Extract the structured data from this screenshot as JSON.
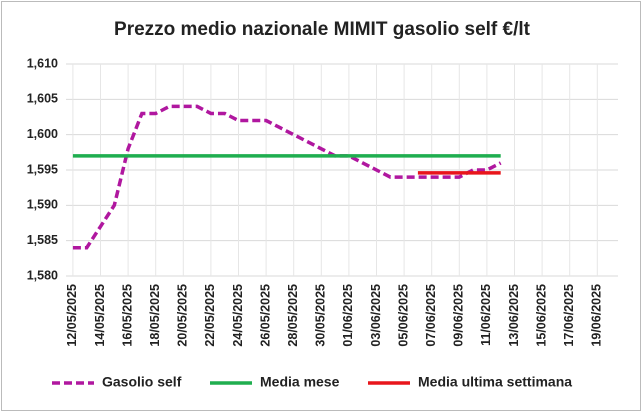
{
  "chart_data": {
    "type": "line",
    "title": "Prezzo medio nazionale MIMIT gasolio self €/lt",
    "categories": [
      "12/05/2025",
      null,
      "14/05/2025",
      null,
      "16/05/2025",
      null,
      "18/05/2025",
      null,
      "20/05/2025",
      null,
      "22/05/2025",
      null,
      "24/05/2025",
      null,
      "26/05/2025",
      null,
      "28/05/2025",
      null,
      "30/05/2025",
      null,
      "01/06/2025",
      null,
      "03/06/2025",
      null,
      "05/06/2025",
      null,
      "07/06/2025",
      null,
      "09/06/2025",
      null,
      "11/06/2025",
      null,
      "13/06/2025",
      null,
      "15/06/2025",
      null,
      "17/06/2025",
      null,
      "19/06/2025",
      null
    ],
    "series": [
      {
        "name": "Gasolio self",
        "color": "#b0179f",
        "dash": true,
        "values": [
          1.584,
          1.584,
          1.587,
          1.59,
          1.598,
          1.603,
          1.603,
          1.604,
          1.604,
          1.604,
          1.603,
          1.603,
          1.602,
          1.602,
          1.602,
          1.601,
          1.6,
          1.599,
          1.598,
          1.597,
          1.597,
          1.596,
          1.595,
          1.594,
          1.594,
          1.594,
          1.594,
          1.594,
          1.594,
          1.595,
          1.595,
          1.596,
          null,
          null,
          null,
          null,
          null,
          null,
          null,
          null
        ]
      },
      {
        "name": "Media mese",
        "color": "#1fae4f",
        "values": [
          1.597,
          1.597,
          1.597,
          1.597,
          1.597,
          1.597,
          1.597,
          1.597,
          1.597,
          1.597,
          1.597,
          1.597,
          1.597,
          1.597,
          1.597,
          1.597,
          1.597,
          1.597,
          1.597,
          1.597,
          1.597,
          1.597,
          1.597,
          1.597,
          1.597,
          1.597,
          1.597,
          1.597,
          1.597,
          1.597,
          1.597,
          1.597,
          null,
          null,
          null,
          null,
          null,
          null,
          null,
          null
        ]
      },
      {
        "name": "Media ultima settimana",
        "color": "#e8151b",
        "values": [
          null,
          null,
          null,
          null,
          null,
          null,
          null,
          null,
          null,
          null,
          null,
          null,
          null,
          null,
          null,
          null,
          null,
          null,
          null,
          null,
          null,
          null,
          null,
          null,
          null,
          1.5946,
          1.5946,
          1.5946,
          1.5946,
          1.5946,
          1.5946,
          1.5946,
          null,
          null,
          null,
          null,
          null,
          null,
          null,
          null
        ]
      }
    ],
    "ylim": [
      1.58,
      1.61
    ],
    "yticks": [
      {
        "value": 1.58,
        "label": "1,580"
      },
      {
        "value": 1.585,
        "label": "1,585"
      },
      {
        "value": 1.59,
        "label": "1,590"
      },
      {
        "value": 1.595,
        "label": "1,595"
      },
      {
        "value": 1.6,
        "label": "1,600"
      },
      {
        "value": 1.605,
        "label": "1,605"
      },
      {
        "value": 1.61,
        "label": "1,610"
      }
    ],
    "grid": true,
    "legend": "bottom"
  }
}
